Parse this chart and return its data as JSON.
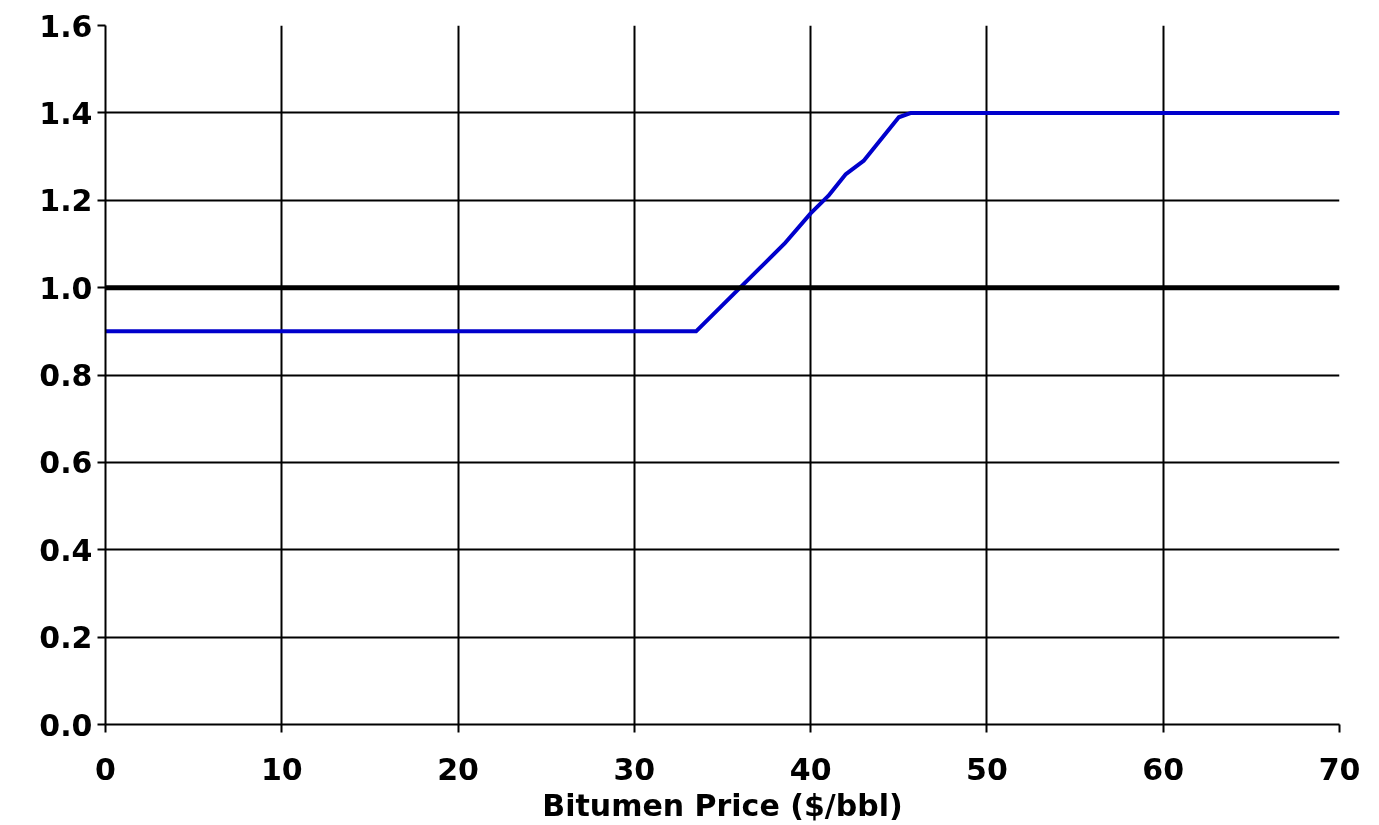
{
  "chart_data": {
    "type": "line",
    "xlabel": "Bitumen Price ($/bbl)",
    "xlim": [
      0,
      70
    ],
    "ylim": [
      0,
      1.6
    ],
    "xticks": [
      0,
      10,
      20,
      30,
      40,
      50,
      60,
      70
    ],
    "yticks": [
      {
        "value": 0,
        "label": "0.0"
      },
      {
        "value": 0.2,
        "label": "0.2"
      },
      {
        "value": 0.4,
        "label": "0.4"
      },
      {
        "value": 0.6,
        "label": "0.6"
      },
      {
        "value": 0.8,
        "label": "0.8"
      },
      {
        "value": 1.0,
        "label": "1.0"
      },
      {
        "value": 1.2,
        "label": "1.2"
      },
      {
        "value": 1.4,
        "label": "1.4"
      },
      {
        "value": 1.6,
        "label": "1.6"
      }
    ],
    "grid": true,
    "marker": "none",
    "line_style": "solid",
    "series": [
      {
        "color": "#0000cc",
        "x": [
          0,
          33.5,
          35,
          36,
          37,
          38.5,
          40,
          41,
          42,
          43,
          45,
          45.7,
          70
        ],
        "values": [
          0.9,
          0.9,
          0.96,
          1.0,
          1.04,
          1.1,
          1.17,
          1.21,
          1.26,
          1.29,
          1.39,
          1.4,
          1.4
        ]
      }
    ],
    "ref_lines": [
      {
        "axis": "y",
        "value": 1.0,
        "color": "#000000",
        "line_style": "solid"
      }
    ]
  }
}
